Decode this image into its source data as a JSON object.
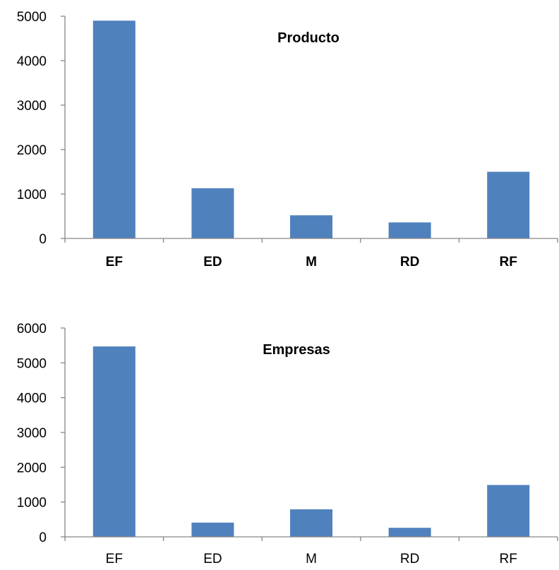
{
  "chart_data": [
    {
      "type": "bar",
      "title": "Producto",
      "categories": [
        "EF",
        "ED",
        "M",
        "RD",
        "RF"
      ],
      "values": [
        4900,
        1130,
        520,
        360,
        1500
      ],
      "ylim": [
        0,
        5000
      ],
      "yticks": [
        "0",
        "1000",
        "2000",
        "3000",
        "4000",
        "5000"
      ],
      "xlabel": "",
      "ylabel": "",
      "bar_color": "#4F81BD",
      "category_labels_bold": true,
      "grid": false,
      "legend": "none"
    },
    {
      "type": "bar",
      "title": "Empresas",
      "categories": [
        "EF",
        "ED",
        "M",
        "RD",
        "RF"
      ],
      "values": [
        5470,
        410,
        790,
        260,
        1490
      ],
      "ylim": [
        0,
        6000
      ],
      "yticks": [
        "0",
        "1000",
        "2000",
        "3000",
        "4000",
        "5000",
        "6000"
      ],
      "xlabel": "",
      "ylabel": "",
      "bar_color": "#4F81BD",
      "category_labels_bold": false,
      "grid": false,
      "legend": "none"
    }
  ]
}
